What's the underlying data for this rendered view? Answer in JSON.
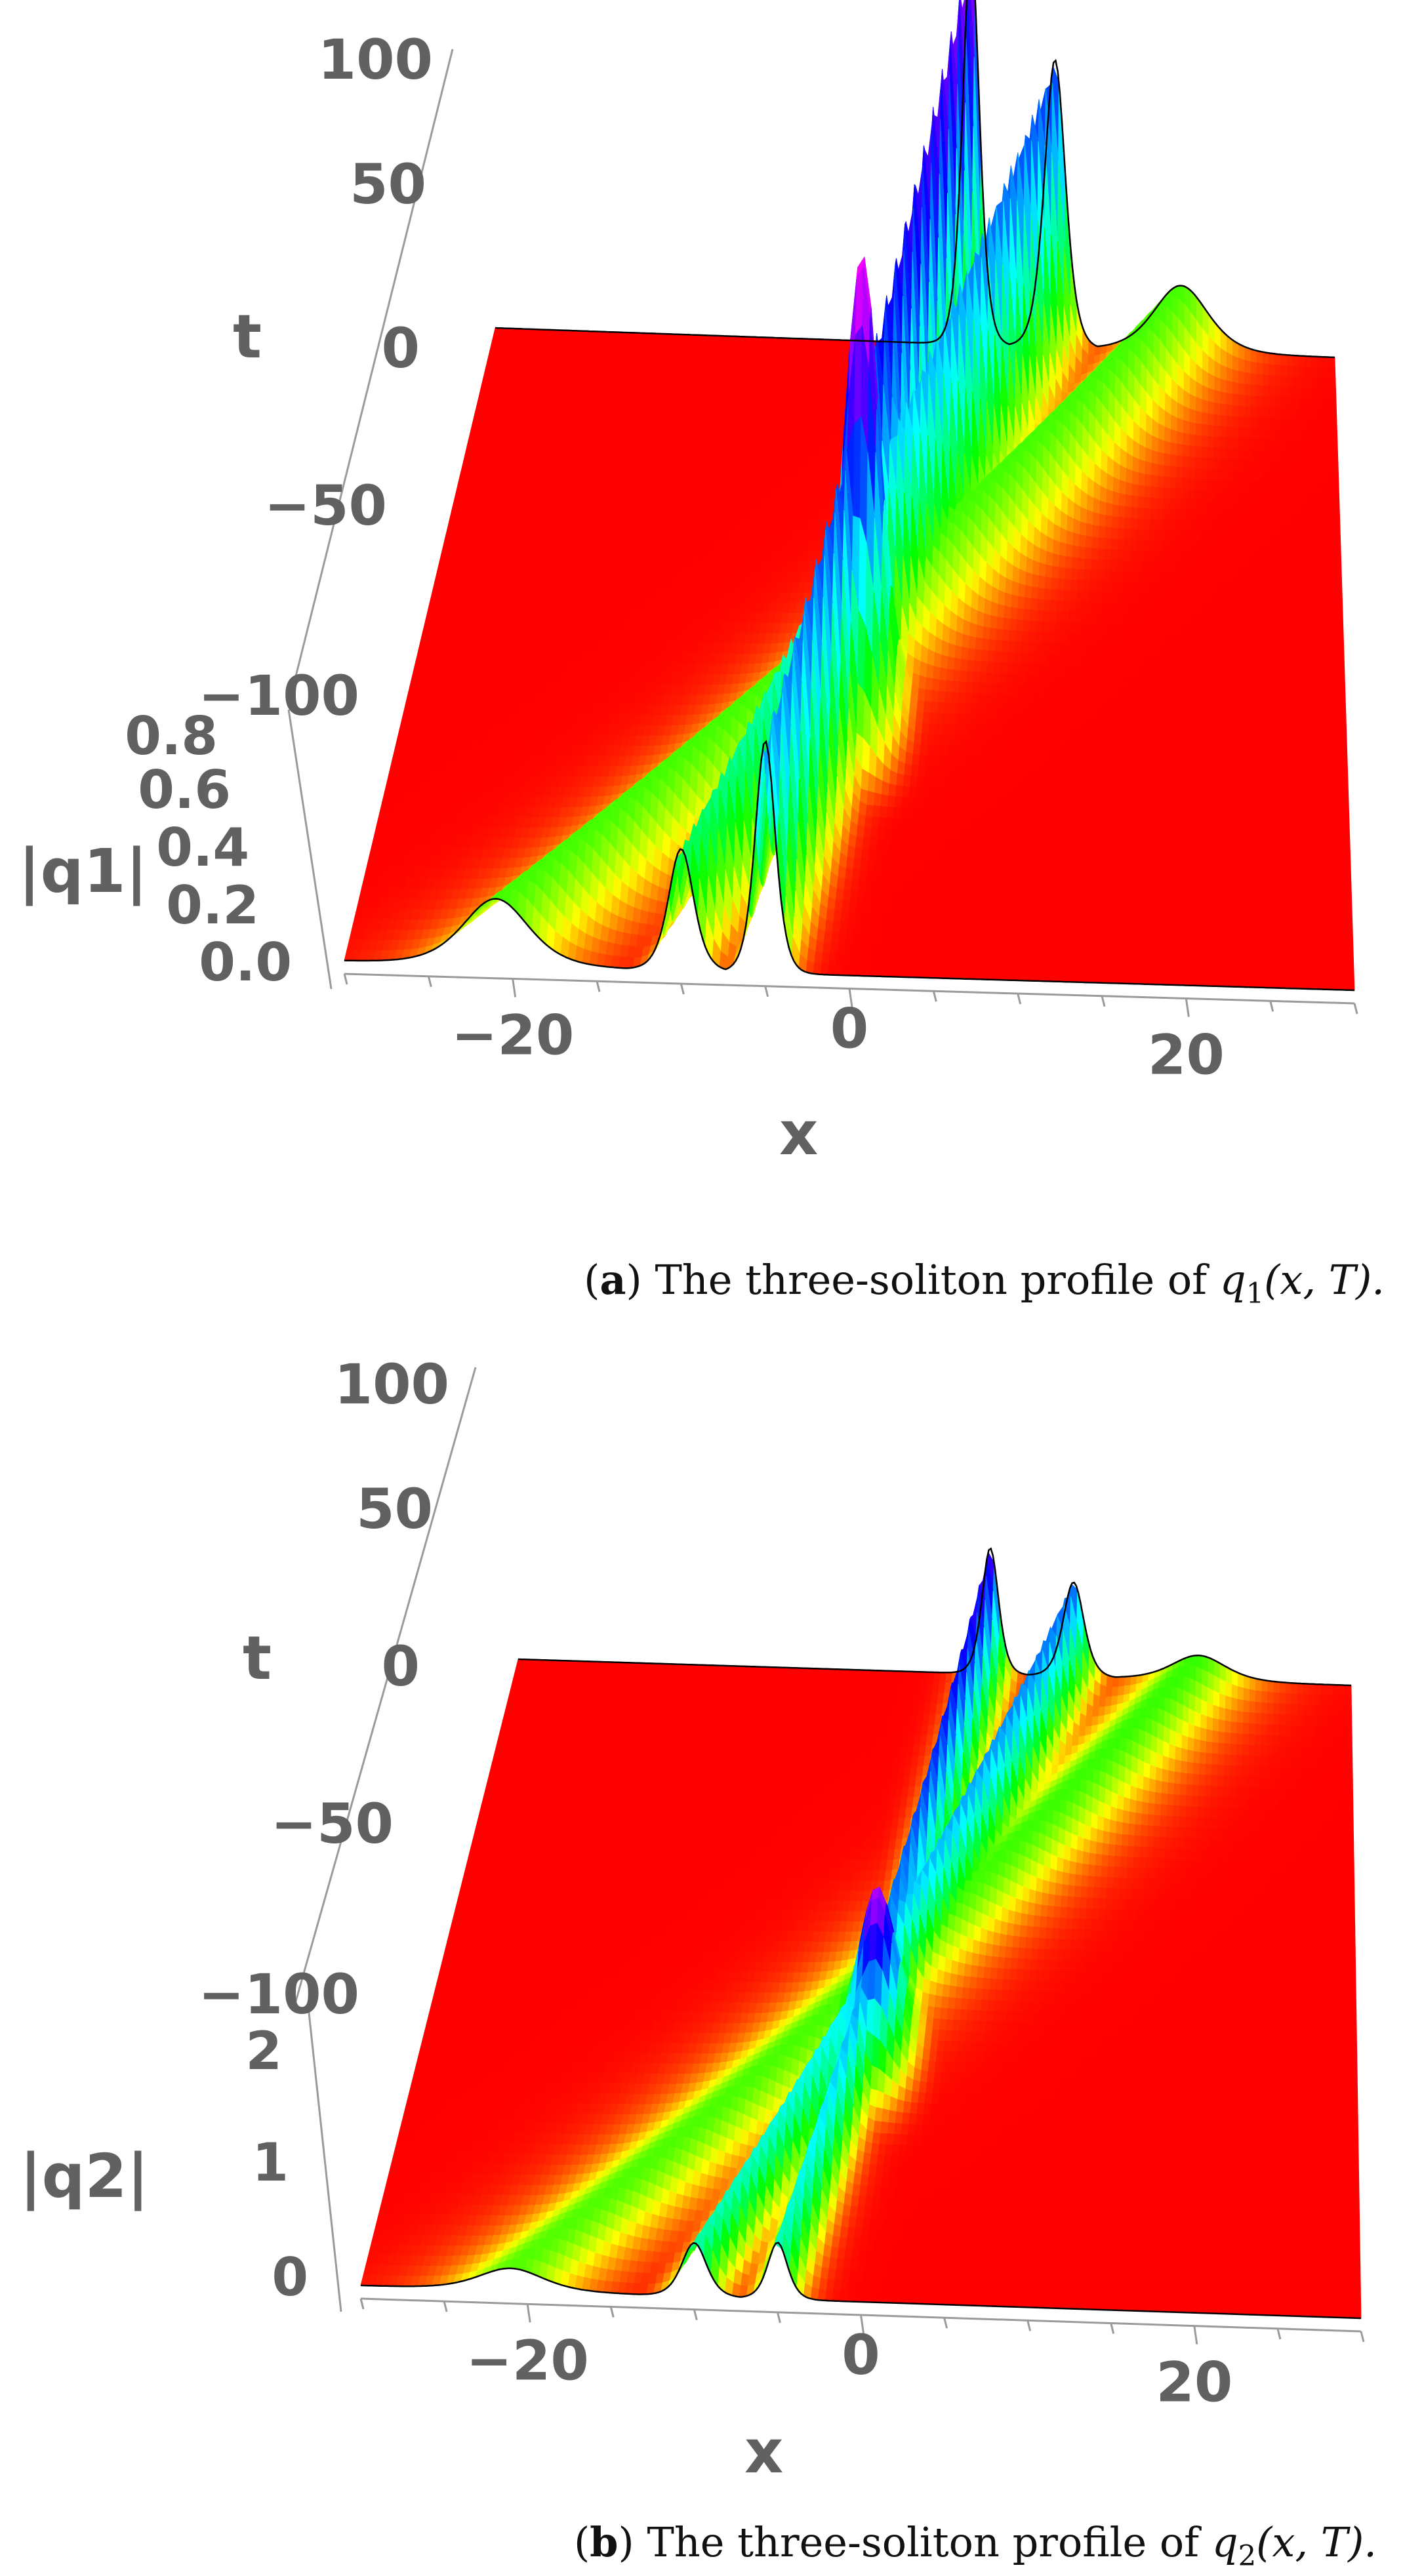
{
  "panels": [
    {
      "caption_label": "a",
      "caption_text": "The three-soliton profile of",
      "caption_math": "q",
      "caption_sub": "1",
      "caption_args": "(x, T).",
      "chart_data": {
        "type": "surface3d",
        "x_label": "x",
        "t_label": "t",
        "z_label": "|q1|",
        "x_ticks": [
          "−20",
          "0",
          "20"
        ],
        "t_ticks": [
          "100",
          "50",
          "0",
          "−50",
          "−100"
        ],
        "z_ticks": [
          "0.0",
          "0.2",
          "0.4",
          "0.6",
          "0.8"
        ],
        "x_range": [
          -30,
          30
        ],
        "t_range": [
          -100,
          100
        ],
        "z_range": [
          0,
          0.8
        ],
        "solitons": [
          {
            "name": "soliton-1",
            "x_at_t_minus_100": -21,
            "x_at_t_plus_100": 19,
            "peak_front": 0.12,
            "peak_back": 0.12
          },
          {
            "name": "soliton-2",
            "x_at_t_minus_100": -10,
            "x_at_t_plus_100": 10,
            "peak_front": 0.22,
            "peak_back": 0.52
          },
          {
            "name": "soliton-3",
            "x_at_t_minus_100": -5,
            "x_at_t_plus_100": 4,
            "peak_front": 0.42,
            "peak_back": 0.72
          }
        ],
        "interaction_peak": {
          "x": -1,
          "t": -15,
          "value": 0.82
        },
        "colormap": [
          "#ff0000",
          "#ffff00",
          "#00ff00",
          "#00ffff",
          "#0000ff",
          "#ff00ff"
        ]
      }
    },
    {
      "caption_label": "b",
      "caption_text": "The three-soliton profile of",
      "caption_math": "q",
      "caption_sub": "2",
      "caption_args": "(x, T).",
      "chart_data": {
        "type": "surface3d",
        "x_label": "x",
        "t_label": "t",
        "z_label": "|q2|",
        "x_ticks": [
          "−20",
          "0",
          "20"
        ],
        "t_ticks": [
          "100",
          "50",
          "0",
          "−50",
          "−100"
        ],
        "z_ticks": [
          "0",
          "1",
          "2"
        ],
        "x_range": [
          -30,
          30
        ],
        "t_range": [
          -100,
          100
        ],
        "z_range": [
          0,
          2.5
        ],
        "solitons": [
          {
            "name": "soliton-1",
            "x_at_t_minus_100": -21,
            "x_at_t_plus_100": 19,
            "peak_front": 0.35,
            "peak_back": 0.4
          },
          {
            "name": "soliton-2",
            "x_at_t_minus_100": -10,
            "x_at_t_plus_100": 10,
            "peak_front": 0.85,
            "peak_back": 1.5
          },
          {
            "name": "soliton-3",
            "x_at_t_minus_100": -5,
            "x_at_t_plus_100": 4,
            "peak_front": 0.9,
            "peak_back": 2.0
          }
        ],
        "interaction_peak": {
          "x": -1,
          "t": -15,
          "value": 2.3
        },
        "colormap": [
          "#ff0000",
          "#ffff00",
          "#00ff00",
          "#00ffff",
          "#0000ff",
          "#ff00ff"
        ]
      }
    }
  ]
}
